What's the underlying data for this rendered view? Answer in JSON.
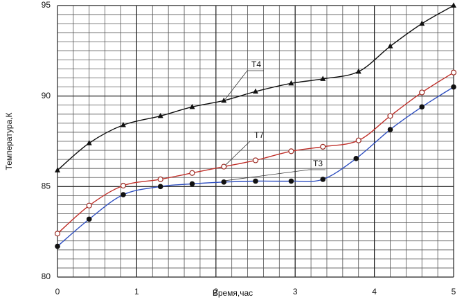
{
  "chart_data": {
    "type": "line",
    "x_label": "Время,час",
    "y_label": "Температура,К",
    "xlim": [
      0,
      5
    ],
    "ylim": [
      80,
      95
    ],
    "xticks": [
      0,
      1,
      2,
      3,
      4,
      5
    ],
    "yticks": [
      80,
      85,
      90,
      95
    ],
    "grid": true,
    "xgrid_step": 0.2,
    "ygrid_step": 0.5,
    "series": [
      {
        "name": "T4",
        "color": "#111111",
        "marker": "triangle",
        "marker_color": "#111111",
        "x": [
          0,
          0.4,
          0.83,
          1.3,
          1.7,
          2.1,
          2.5,
          2.95,
          3.35,
          3.8,
          4.2,
          4.6,
          5
        ],
        "values": [
          85.9,
          87.4,
          88.4,
          88.9,
          89.4,
          89.75,
          90.25,
          90.7,
          90.95,
          91.35,
          92.75,
          94.0,
          95.0
        ]
      },
      {
        "name": "T7",
        "color": "#c0302a",
        "marker": "open-circle",
        "marker_color": "#9a2a22",
        "x": [
          0,
          0.4,
          0.83,
          1.3,
          1.7,
          2.1,
          2.5,
          2.95,
          3.35,
          3.8,
          4.2,
          4.6,
          5
        ],
        "values": [
          82.4,
          83.95,
          85.05,
          85.4,
          85.75,
          86.1,
          86.45,
          86.95,
          87.2,
          87.55,
          88.9,
          90.2,
          91.3
        ]
      },
      {
        "name": "T3",
        "color": "#2f4fc0",
        "marker": "circle",
        "marker_color": "#111111",
        "x": [
          0,
          0.4,
          0.83,
          1.3,
          1.7,
          2.1,
          2.5,
          2.95,
          3.35,
          3.77,
          4.2,
          4.6,
          5
        ],
        "values": [
          81.7,
          83.2,
          84.55,
          85.0,
          85.15,
          85.25,
          85.3,
          85.3,
          85.4,
          86.55,
          88.15,
          89.4,
          90.5
        ]
      }
    ]
  }
}
